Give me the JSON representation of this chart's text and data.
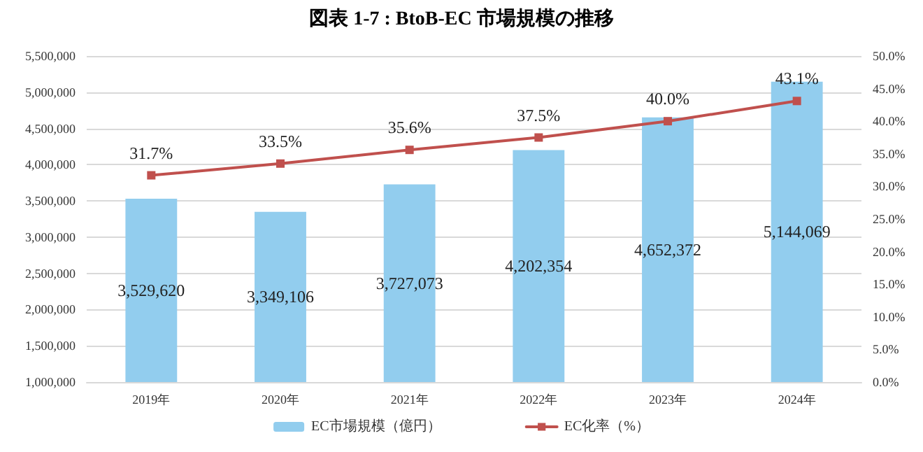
{
  "chart_data": {
    "type": "bar",
    "title": "図表 1-7 : BtoB-EC 市場規模の推移",
    "categories": [
      "2019年",
      "2020年",
      "2021年",
      "2022年",
      "2023年",
      "2024年"
    ],
    "series": [
      {
        "name": "EC市場規模（億円）",
        "color": "#92cdee",
        "values": [
          3529620,
          3349106,
          3727073,
          4202354,
          4652372,
          5144069
        ],
        "value_labels": [
          "3,529,620",
          "3,349,106",
          "3,727,073",
          "4,202,354",
          "4,652,372",
          "5,144,069"
        ]
      },
      {
        "name": "EC化率（%）",
        "type": "line",
        "axis": "y2",
        "color": "#c0504d",
        "marker": "square",
        "values": [
          31.7,
          33.5,
          35.6,
          37.5,
          40.0,
          43.1
        ],
        "value_labels": [
          "31.7%",
          "33.5%",
          "35.6%",
          "37.5%",
          "40.0%",
          "43.1%"
        ]
      }
    ],
    "ylim": [
      1000000,
      5500000
    ],
    "yticks": [
      {
        "value": 1000000,
        "label": "1,000,000"
      },
      {
        "value": 1500000,
        "label": "1,500,000"
      },
      {
        "value": 2000000,
        "label": "2,000,000"
      },
      {
        "value": 2500000,
        "label": "2,500,000"
      },
      {
        "value": 3000000,
        "label": "3,000,000"
      },
      {
        "value": 3500000,
        "label": "3,500,000"
      },
      {
        "value": 4000000,
        "label": "4,000,000"
      },
      {
        "value": 4500000,
        "label": "4,500,000"
      },
      {
        "value": 5000000,
        "label": "5,000,000"
      },
      {
        "value": 5500000,
        "label": "5,500,000"
      }
    ],
    "y2lim": [
      0,
      50
    ],
    "y2ticks": [
      {
        "value": 0,
        "label": "0.0%"
      },
      {
        "value": 5,
        "label": "5.0%"
      },
      {
        "value": 10,
        "label": "10.0%"
      },
      {
        "value": 15,
        "label": "15.0%"
      },
      {
        "value": 20,
        "label": "20.0%"
      },
      {
        "value": 25,
        "label": "25.0%"
      },
      {
        "value": 30,
        "label": "30.0%"
      },
      {
        "value": 35,
        "label": "35.0%"
      },
      {
        "value": 40,
        "label": "40.0%"
      },
      {
        "value": 45,
        "label": "45.0%"
      },
      {
        "value": 50,
        "label": "50.0%"
      }
    ],
    "grid": "y",
    "legend": "bottom"
  }
}
